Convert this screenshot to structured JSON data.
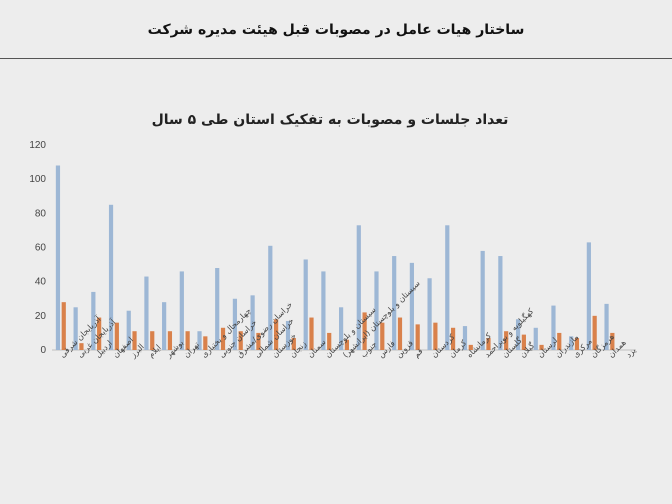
{
  "header": {
    "title": "ساختار هیات عامل در مصوبات قبل هیئت مدیره شرکت"
  },
  "colors": {
    "series_blue": "#9db7d5",
    "series_orange": "#d9814b",
    "axis": "#bfbfbf"
  },
  "chart_data": {
    "type": "bar",
    "title": "تعداد جلسات و مصوبات به تفکیک استان طی ۵ سال",
    "xlabel": "",
    "ylabel": "",
    "ylim": [
      0,
      120
    ],
    "yticks": [
      0,
      20,
      40,
      60,
      80,
      100,
      120
    ],
    "grid": false,
    "legend": "none",
    "categories": [
      "آذربایجان شرقی",
      "آذربایجان غربی",
      "اردبیل",
      "اصفهان",
      "البرز",
      "ایلام",
      "بوشهر",
      "تهران",
      "چهارمحال و بختیاری",
      "خراسان جنوبی",
      "خراسان رضوی/مشرق",
      "خراسان شمالی",
      "خوزستان",
      "زنجان",
      "سمنان",
      "سیستان و بلوچستان",
      "سیستان و بلوچستان (ایرانشهر)",
      "جنوب",
      "فارس",
      "قزوین",
      "قم",
      "کردستان",
      "کرمان",
      "کرمانشاه",
      "کهگیلویه و بویراحمد",
      "گلستان",
      "گیلان",
      "لرستان",
      "مازندران",
      "مرکزی",
      "هرمزگان",
      "همدان",
      "یزد"
    ],
    "series": [
      {
        "values": [
          108,
          25,
          34,
          85,
          23,
          43,
          28,
          46,
          11,
          48,
          30,
          32,
          61,
          17,
          53,
          46,
          25,
          73,
          46,
          55,
          51,
          42,
          73,
          14,
          58,
          55,
          18,
          13,
          26,
          8,
          63,
          27,
          0
        ]
      },
      {
        "values": [
          28,
          4,
          19,
          16,
          11,
          11,
          11,
          11,
          8,
          13,
          11,
          10,
          18,
          7,
          19,
          10,
          6,
          22,
          16,
          19,
          15,
          16,
          13,
          3,
          7,
          11,
          9,
          3,
          10,
          7,
          20,
          10,
          0
        ]
      }
    ]
  }
}
